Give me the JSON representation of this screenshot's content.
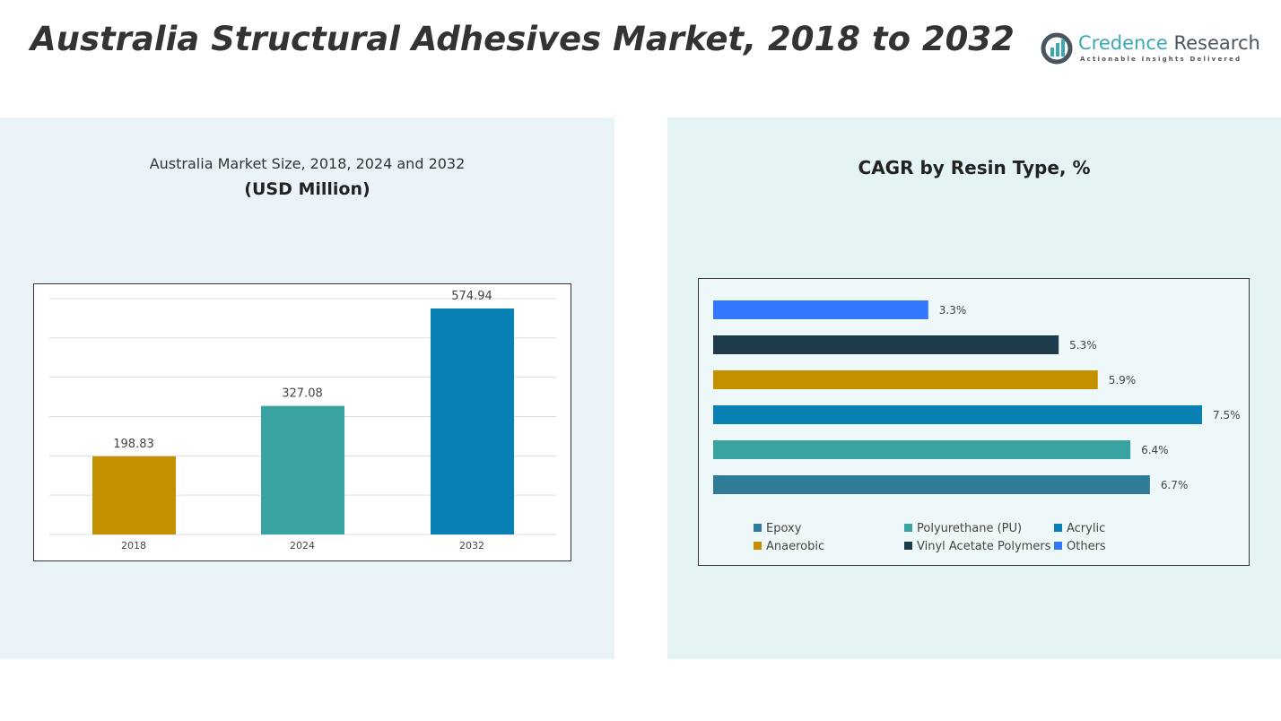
{
  "title": "Australia Structural Adhesives Market, 2018 to 2032",
  "logo": {
    "name_part1": "Credence",
    "name_part2": "Research",
    "tagline": "Actionable Insights Delivered"
  },
  "chart_data": [
    {
      "type": "bar",
      "title": "Australia Market Size, 2018, 2024 and 2032",
      "subtitle": "(USD Million)",
      "categories": [
        "2018",
        "2024",
        "2032"
      ],
      "values": [
        198.83,
        327.08,
        574.94
      ],
      "value_labels": [
        "198.83",
        "327.08",
        "574.94"
      ],
      "colors": [
        "#c49000",
        "#38a3a0",
        "#0880b3"
      ],
      "ylim": [
        0,
        600
      ],
      "grid": true
    },
    {
      "type": "bar",
      "orientation": "horizontal",
      "title": "CAGR by Resin Type, %",
      "categories": [
        "Others",
        "Vinyl Acetate Polymers",
        "Anaerobic",
        "Acrylic",
        "Polyurethane (PU)",
        "Epoxy"
      ],
      "values": [
        3.3,
        5.3,
        5.9,
        7.5,
        6.4,
        6.7
      ],
      "value_labels": [
        "3.3%",
        "5.3%",
        "5.9%",
        "7.5%",
        "6.4%",
        "6.7%"
      ],
      "colors": [
        "#3377ff",
        "#1c3a4a",
        "#c49000",
        "#0880b3",
        "#38a3a0",
        "#307c98"
      ],
      "xlim": [
        0,
        7.5
      ],
      "legend": [
        {
          "label": "Epoxy",
          "color": "#307c98"
        },
        {
          "label": "Polyurethane (PU)",
          "color": "#38a3a0"
        },
        {
          "label": "Acrylic",
          "color": "#0880b3"
        },
        {
          "label": "Anaerobic",
          "color": "#c49000"
        },
        {
          "label": "Vinyl Acetate Polymers",
          "color": "#1c3a4a"
        },
        {
          "label": "Others",
          "color": "#3377ff"
        }
      ]
    }
  ]
}
